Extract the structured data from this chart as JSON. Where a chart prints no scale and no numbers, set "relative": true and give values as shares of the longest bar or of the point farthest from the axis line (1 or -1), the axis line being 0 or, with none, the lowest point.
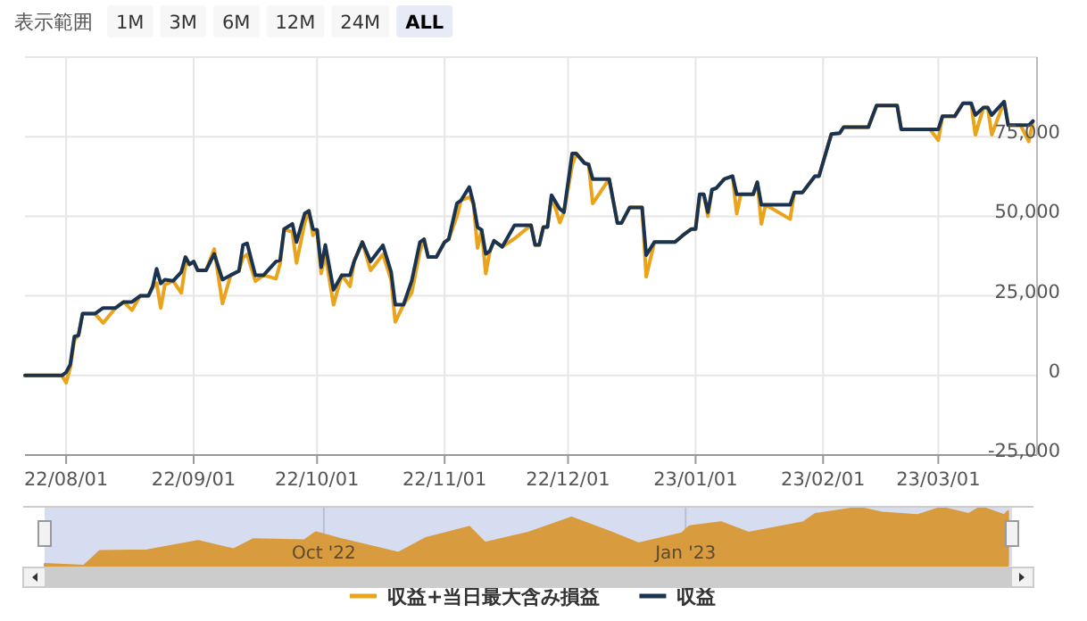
{
  "chart_data": [
    {
      "type": "line",
      "annotations": [
        "表示範囲",
        "1M",
        "3M",
        "6M",
        "12M",
        "24M",
        "ALL"
      ],
      "x": [
        "2022-07-22",
        "2022-07-31",
        "2022-08-01",
        "2022-08-02",
        "2022-08-03",
        "2022-08-04",
        "2022-08-05",
        "2022-08-08",
        "2022-08-10",
        "2022-08-13",
        "2022-08-15",
        "2022-08-17",
        "2022-08-19",
        "2022-08-21",
        "2022-08-22",
        "2022-08-23",
        "2022-08-24",
        "2022-08-25",
        "2022-08-27",
        "2022-08-29",
        "2022-08-30",
        "2022-08-31",
        "2022-09-01",
        "2022-09-02",
        "2022-09-04",
        "2022-09-06",
        "2022-09-08",
        "2022-09-10",
        "2022-09-12",
        "2022-09-13",
        "2022-09-14",
        "2022-09-16",
        "2022-09-18",
        "2022-09-21",
        "2022-09-22",
        "2022-09-23",
        "2022-09-25",
        "2022-09-26",
        "2022-09-28",
        "2022-09-29",
        "2022-09-30",
        "2022-10-01",
        "2022-10-02",
        "2022-10-03",
        "2022-10-05",
        "2022-10-07",
        "2022-10-09",
        "2022-10-10",
        "2022-10-12",
        "2022-10-14",
        "2022-10-17",
        "2022-10-19",
        "2022-10-20",
        "2022-10-22",
        "2022-10-24",
        "2022-10-26",
        "2022-10-27",
        "2022-10-28",
        "2022-10-30",
        "2022-11-01",
        "2022-11-02",
        "2022-11-04",
        "2022-11-05",
        "2022-11-07",
        "2022-11-08",
        "2022-11-09",
        "2022-11-10",
        "2022-11-11",
        "2022-11-12",
        "2022-11-13",
        "2022-11-15",
        "2022-11-18",
        "2022-11-22",
        "2022-11-23",
        "2022-11-24",
        "2022-11-25",
        "2022-11-26",
        "2022-11-27",
        "2022-11-29",
        "2022-11-30",
        "2022-12-02",
        "2022-12-03",
        "2022-12-05",
        "2022-12-06",
        "2022-12-07",
        "2022-12-11",
        "2022-12-13",
        "2022-12-14",
        "2022-12-16",
        "2022-12-19",
        "2022-12-20",
        "2022-12-22",
        "2022-12-27",
        "2022-12-29",
        "2022-12-31",
        "2023-01-01",
        "2023-01-02",
        "2023-01-03",
        "2023-01-04",
        "2023-01-05",
        "2023-01-06",
        "2023-01-08",
        "2023-01-10",
        "2023-01-11",
        "2023-01-12",
        "2023-01-15",
        "2023-01-16",
        "2023-01-17",
        "2023-01-18",
        "2023-01-24",
        "2023-01-25",
        "2023-01-27",
        "2023-01-30",
        "2023-01-31",
        "2023-02-03",
        "2023-02-05",
        "2023-02-06",
        "2023-02-12",
        "2023-02-14",
        "2023-02-19",
        "2023-02-20",
        "2023-02-27",
        "2023-03-01",
        "2023-03-02",
        "2023-03-05",
        "2023-03-07",
        "2023-03-09",
        "2023-03-10",
        "2023-03-12",
        "2023-03-13",
        "2023-03-14",
        "2023-03-17",
        "2023-03-18",
        "2023-03-21",
        "2023-03-23",
        "2023-03-24"
      ],
      "series": [
        {
          "name": "収益+当日最大含み損益",
          "color": "#e9a41c",
          "values": [
            0,
            0,
            -2300,
            2500,
            11000,
            12600,
            19400,
            19400,
            16500,
            21200,
            23100,
            20500,
            25000,
            25000,
            27800,
            29000,
            21200,
            28500,
            29700,
            25900,
            35000,
            34900,
            35800,
            33000,
            33000,
            39700,
            22600,
            31500,
            32800,
            37000,
            38000,
            29600,
            31500,
            30400,
            35000,
            46000,
            45000,
            35300,
            48000,
            51700,
            44000,
            45700,
            32000,
            38000,
            22200,
            31500,
            28000,
            35800,
            41900,
            33000,
            38000,
            30000,
            16800,
            22200,
            26000,
            39000,
            42800,
            37200,
            37200,
            41900,
            42800,
            50000,
            55000,
            56000,
            54100,
            40000,
            45700,
            32000,
            39100,
            42300,
            40400,
            43000,
            47200,
            41000,
            41000,
            46600,
            46600,
            56600,
            48000,
            51300,
            66000,
            69700,
            66700,
            66300,
            54000,
            61700,
            47900,
            47900,
            52800,
            52800,
            31000,
            41900,
            41900,
            44100,
            46000,
            46000,
            56900,
            56900,
            50000,
            58400,
            58800,
            61700,
            62600,
            50800,
            56900,
            56900,
            60700,
            47600,
            53600,
            49100,
            57500,
            57500,
            62600,
            62600,
            75800,
            76100,
            78000,
            78000,
            84800,
            84800,
            77300,
            77300,
            73900,
            81400,
            81400,
            85500,
            85500,
            75600,
            84200,
            84200,
            75600,
            86000,
            78600,
            78600,
            73500,
            79900
          ]
        },
        {
          "name": "収益",
          "color": "#1a3350",
          "values": [
            0,
            0,
            1000,
            3400,
            12200,
            12600,
            19400,
            19400,
            21200,
            21200,
            23100,
            23100,
            25000,
            25000,
            27800,
            33500,
            28900,
            30100,
            29700,
            32500,
            37200,
            34900,
            35800,
            33000,
            33000,
            38200,
            30100,
            31500,
            32800,
            41000,
            41500,
            31500,
            31500,
            35800,
            36200,
            46000,
            47600,
            41900,
            50900,
            51700,
            46000,
            45700,
            34000,
            41000,
            26900,
            31500,
            31500,
            35800,
            41900,
            35800,
            40900,
            32500,
            22200,
            22200,
            29700,
            41900,
            42800,
            37200,
            37200,
            41900,
            42800,
            54100,
            55000,
            59200,
            54100,
            46600,
            45700,
            38200,
            39100,
            42300,
            40400,
            47200,
            47200,
            41000,
            41000,
            46600,
            46600,
            56600,
            52300,
            51300,
            69700,
            69700,
            66700,
            66300,
            61700,
            61700,
            47900,
            47900,
            52800,
            52800,
            37800,
            41900,
            41900,
            44100,
            46000,
            46000,
            56900,
            56900,
            51300,
            58400,
            58800,
            61700,
            62600,
            56900,
            56900,
            56900,
            60700,
            53600,
            53600,
            53600,
            57500,
            57500,
            62600,
            62600,
            75800,
            76100,
            78000,
            78000,
            84800,
            84800,
            77300,
            77300,
            77300,
            81400,
            81400,
            85500,
            85500,
            81800,
            84200,
            84200,
            81800,
            86000,
            78600,
            78600,
            78600,
            79900
          ]
        }
      ],
      "xlim": [
        "2022-07-22",
        "2023-03-25"
      ],
      "xticks": [
        {
          "value": "2022-08-01",
          "label": "22/08/01"
        },
        {
          "value": "2022-09-01",
          "label": "22/09/01"
        },
        {
          "value": "2022-10-01",
          "label": "22/10/01"
        },
        {
          "value": "2022-11-01",
          "label": "22/11/01"
        },
        {
          "value": "2022-12-01",
          "label": "22/12/01"
        },
        {
          "value": "2023-01-01",
          "label": "23/01/01"
        },
        {
          "value": "2023-02-01",
          "label": "23/02/01"
        },
        {
          "value": "2023-03-01",
          "label": "23/03/01"
        }
      ],
      "ylim": [
        -25000,
        100000
      ],
      "yticks": [
        {
          "value": -25000,
          "label": "-25,000"
        },
        0,
        {
          "value": 25000,
          "label": "25,000"
        },
        {
          "value": 50000,
          "label": "50,000"
        },
        {
          "value": 75000,
          "label": "75,000"
        }
      ],
      "grid": true,
      "legend": "bottom",
      "line_style": "solid"
    },
    {
      "type": "area",
      "relative": true,
      "x": [
        "2022-07-22",
        "2022-08-01",
        "2022-08-05",
        "2022-08-17",
        "2022-08-30",
        "2022-09-08",
        "2022-09-13",
        "2022-09-26",
        "2022-09-29",
        "2022-10-05",
        "2022-10-20",
        "2022-10-27",
        "2022-11-07",
        "2022-11-11",
        "2022-11-22",
        "2022-12-03",
        "2022-12-13",
        "2022-12-20",
        "2022-12-31",
        "2023-01-02",
        "2023-01-10",
        "2023-01-17",
        "2023-01-31",
        "2023-02-03",
        "2023-02-14",
        "2023-02-20",
        "2023-03-01",
        "2023-03-07",
        "2023-03-14",
        "2023-03-17",
        "2023-03-23",
        "2023-03-24"
      ],
      "series": [
        {
          "color": "#d89b3e",
          "values": [
            0.03,
            0,
            0.25,
            0.26,
            0.42,
            0.28,
            0.45,
            0.43,
            0.57,
            0.46,
            0.22,
            0.47,
            0.66,
            0.39,
            0.56,
            0.82,
            0.57,
            0.38,
            0.55,
            0.67,
            0.74,
            0.56,
            0.74,
            0.88,
            0.99,
            0.9,
            0.86,
            0.99,
            0.88,
            1,
            0.86,
            0.93
          ]
        }
      ],
      "xlim": [
        "2022-07-22",
        "2023-03-25"
      ],
      "xticks": [
        {
          "value": "2022-10-01",
          "label": "Oct '22"
        },
        {
          "value": "2023-01-01",
          "label": "Jan '23"
        }
      ],
      "tick_labels": "x",
      "grid": "x"
    }
  ]
}
